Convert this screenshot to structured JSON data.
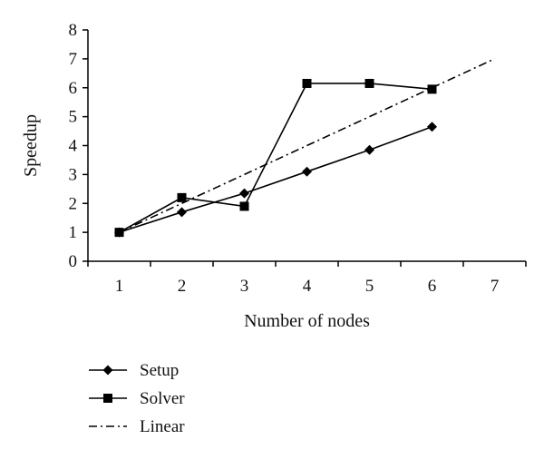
{
  "chart_data": {
    "type": "line",
    "title": "",
    "xlabel": "Number of nodes",
    "ylabel": "Speedup",
    "xlim": [
      0.5,
      7.5
    ],
    "ylim": [
      0,
      8
    ],
    "x_ticks": [
      "1",
      "2",
      "3",
      "4",
      "5",
      "6",
      "7"
    ],
    "y_ticks": [
      "0",
      "1",
      "2",
      "3",
      "4",
      "5",
      "6",
      "7",
      "8"
    ],
    "grid": false,
    "legend_position": "bottom-left",
    "series": [
      {
        "name": "Setup",
        "marker": "diamond",
        "line_style": "solid",
        "color": "#000000",
        "x": [
          1,
          2,
          3,
          4,
          5,
          6
        ],
        "y": [
          1.0,
          1.7,
          2.35,
          3.1,
          3.85,
          4.65
        ]
      },
      {
        "name": "Solver",
        "marker": "square",
        "line_style": "solid",
        "color": "#000000",
        "x": [
          1,
          2,
          3,
          4,
          5,
          6
        ],
        "y": [
          1.0,
          2.2,
          1.9,
          6.15,
          6.15,
          5.95
        ]
      },
      {
        "name": "Linear",
        "marker": "none",
        "line_style": "dash-dot",
        "color": "#000000",
        "x": [
          1,
          7
        ],
        "y": [
          1,
          7
        ]
      }
    ]
  }
}
